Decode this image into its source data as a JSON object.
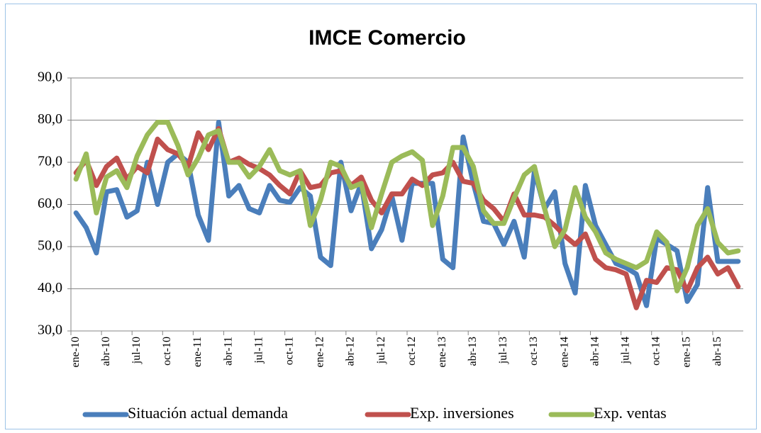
{
  "chart_data": {
    "type": "line",
    "title": "IMCE Comercio",
    "categories": [
      "ene-10",
      null,
      null,
      "abr-10",
      null,
      null,
      "jul-10",
      null,
      null,
      "oct-10",
      null,
      null,
      "ene-11",
      null,
      null,
      "abr-11",
      null,
      null,
      "jul-11",
      null,
      null,
      "oct-11",
      null,
      null,
      "ene-12",
      null,
      null,
      "abr-12",
      null,
      null,
      "jul-12",
      null,
      null,
      "oct-12",
      null,
      null,
      "ene-13",
      null,
      null,
      "abr-13",
      null,
      null,
      "jul-13",
      null,
      null,
      "oct-13",
      null,
      null,
      "ene-14",
      null,
      null,
      "abr-14",
      null,
      null,
      "jul-14",
      null,
      null,
      "oct-14",
      null,
      null,
      "ene-15",
      null,
      null,
      "abr-15",
      null,
      null
    ],
    "ylim": [
      30,
      90
    ],
    "yticks": [
      {
        "value": 30,
        "label": "30,0"
      },
      {
        "value": 40,
        "label": "40,0"
      },
      {
        "value": 50,
        "label": "50,0"
      },
      {
        "value": 60,
        "label": "60,0"
      },
      {
        "value": 70,
        "label": "70,0"
      },
      {
        "value": 80,
        "label": "80,0"
      },
      {
        "value": 90,
        "label": "90,0"
      }
    ],
    "grid": true,
    "legend": "bottom",
    "series": [
      {
        "name": "Situación actual demanda",
        "color": "#4a7ebb",
        "values": [
          58,
          54.5,
          48.5,
          63,
          63.5,
          57,
          58.5,
          70,
          60,
          70,
          72,
          70,
          57.5,
          51.5,
          79.5,
          62,
          64.5,
          59,
          58,
          64.5,
          61,
          60.5,
          64,
          62,
          47.5,
          45.5,
          70,
          58.5,
          65,
          49.5,
          54,
          62,
          51.5,
          65,
          65,
          65,
          47,
          45,
          76,
          65,
          56,
          55.5,
          50.5,
          56,
          47.5,
          68,
          59,
          63,
          46,
          39,
          64.5,
          55,
          50.5,
          46,
          45,
          43.5,
          36,
          52,
          50.5,
          49,
          37,
          41,
          64,
          46.5,
          46.5,
          46.5
        ]
      },
      {
        "name": "Exp. inversiones",
        "color": "#c0504d",
        "values": [
          67.5,
          70.5,
          64.5,
          69,
          71,
          66,
          69,
          67.5,
          75.5,
          73,
          72,
          69,
          77,
          73,
          78,
          70,
          71,
          69.5,
          68.5,
          67,
          64.5,
          62.5,
          68,
          64,
          64.5,
          67.5,
          68,
          64.5,
          66.5,
          61,
          58,
          62.5,
          62.5,
          66,
          64.5,
          67,
          67.5,
          70,
          65.5,
          65,
          61,
          59,
          56,
          62.5,
          57.5,
          57.5,
          57,
          55,
          52.5,
          50.5,
          53,
          47,
          45,
          44.5,
          43.5,
          35.5,
          42,
          41.5,
          45,
          44.5,
          39.5,
          45,
          47.5,
          43.5,
          45,
          40.5
        ]
      },
      {
        "name": "Exp. ventas",
        "color": "#9bbb59",
        "values": [
          66,
          72,
          58,
          66.5,
          68,
          64,
          71.5,
          76.5,
          79.5,
          79.5,
          74,
          67,
          71,
          76.5,
          77.5,
          70,
          70,
          66.5,
          69,
          73,
          68,
          67,
          68,
          55,
          61,
          70,
          69,
          64,
          65,
          54.5,
          62.5,
          70,
          71.5,
          72.5,
          70.5,
          55,
          62,
          73.5,
          73.5,
          69,
          58.5,
          55.5,
          55.5,
          61.5,
          67,
          69,
          59,
          50,
          54,
          64,
          57,
          53.5,
          48.5,
          47,
          46,
          45,
          46.5,
          53.5,
          51,
          39.5,
          45,
          55,
          59,
          51,
          48.5,
          49
        ]
      }
    ]
  }
}
